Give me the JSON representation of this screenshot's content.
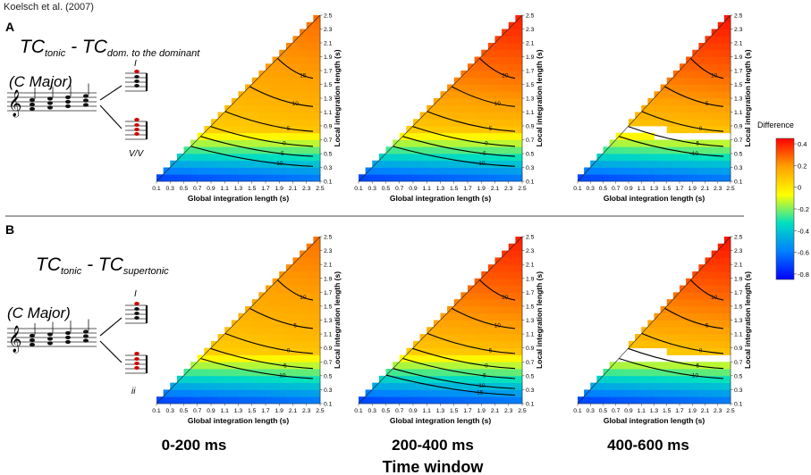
{
  "citation": "Koelsch et al. (2007)",
  "colorbar": {
    "label": "Difference",
    "ticks": [
      "0.4",
      "0.2",
      "0",
      "-0.2",
      "-0.4",
      "-0.6",
      "-0.8"
    ],
    "tick_values": [
      0.4,
      0.2,
      0,
      -0.2,
      -0.4,
      -0.6,
      -0.8
    ],
    "range": [
      -0.85,
      0.45
    ],
    "colors": [
      "#0000ff",
      "#0080ff",
      "#00e0c0",
      "#ffff00",
      "#ffa000",
      "#ff0000"
    ]
  },
  "panels": [
    {
      "letter": "A",
      "title_main_1": "TC",
      "title_sub_1": "tonic",
      "title_dash": " - ",
      "title_main_2": "TC",
      "title_sub_2": "dom. to the dominant",
      "key_label": "(C Major)",
      "chord_label_upper": "I",
      "chord_label_lower": "V/V"
    },
    {
      "letter": "B",
      "title_main_1": "TC",
      "title_sub_1": "tonic",
      "title_dash": " - ",
      "title_main_2": "TC",
      "title_sub_2": "supertonic",
      "key_label": "(C Major)",
      "chord_label_upper": "I",
      "chord_label_lower": "ii"
    }
  ],
  "time_windows": [
    "0-200 ms",
    "200-400 ms",
    "400-600 ms"
  ],
  "time_axis_label": "Time window",
  "chart_data": [
    {
      "type": "heatmap",
      "panel": "A",
      "time_window": "0-200 ms",
      "xlabel": "Global integration length (s)",
      "ylabel": "Local integration length (s)",
      "x_ticks": [
        "0.1",
        "0.3",
        "0.5",
        "0.7",
        "0.9",
        "1.1",
        "1.3",
        "1.5",
        "1.7",
        "1.9",
        "2.1",
        "2.3",
        "2.5"
      ],
      "y_ticks": [
        "0.1",
        "0.3",
        "0.5",
        "0.7",
        "0.9",
        "1.1",
        "1.3",
        "1.5",
        "1.7",
        "1.9",
        "2.1",
        "2.3",
        "2.5"
      ],
      "xlim": [
        0.1,
        2.5
      ],
      "ylim": [
        0.1,
        2.5
      ],
      "domain": "local <= global",
      "value_model": {
        "top": 0.25,
        "bottom": -0.45,
        "min": -0.7,
        "null_band": [
          -0.02,
          0.04
        ]
      },
      "contour_labels": [
        "15",
        "10",
        "5",
        "0",
        "-5",
        "-10"
      ]
    },
    {
      "type": "heatmap",
      "panel": "A",
      "time_window": "200-400 ms",
      "xlabel": "Global integration length (s)",
      "ylabel": "Local integration length (s)",
      "x_ticks": [
        "0.1",
        "0.3",
        "0.5",
        "0.7",
        "0.9",
        "1.1",
        "1.3",
        "1.5",
        "1.7",
        "1.9",
        "2.1",
        "2.3",
        "2.5"
      ],
      "y_ticks": [
        "0.1",
        "0.3",
        "0.5",
        "0.7",
        "0.9",
        "1.1",
        "1.3",
        "1.5",
        "1.7",
        "1.9",
        "2.1",
        "2.3",
        "2.5"
      ],
      "xlim": [
        0.1,
        2.5
      ],
      "ylim": [
        0.1,
        2.5
      ],
      "domain": "local <= global",
      "value_model": {
        "top": 0.38,
        "bottom": -0.45,
        "min": -0.7,
        "null_band": [
          -0.03,
          0.06
        ]
      },
      "contour_labels": [
        "20",
        "10",
        "5",
        "0",
        "-5",
        "-10"
      ]
    },
    {
      "type": "heatmap",
      "panel": "A",
      "time_window": "400-600 ms",
      "xlabel": "Global integration length (s)",
      "ylabel": "Local integration length (s)",
      "x_ticks": [
        "0.1",
        "0.3",
        "0.5",
        "0.7",
        "0.9",
        "1.1",
        "1.3",
        "1.5",
        "1.7",
        "1.9",
        "2.1",
        "2.3",
        "2.5"
      ],
      "y_ticks": [
        "0.1",
        "0.3",
        "0.5",
        "0.7",
        "0.9",
        "1.1",
        "1.3",
        "1.5",
        "1.7",
        "1.9",
        "2.1",
        "2.3",
        "2.5"
      ],
      "xlim": [
        0.1,
        2.5
      ],
      "ylim": [
        0.1,
        2.5
      ],
      "domain": "local <= global",
      "value_model": {
        "top": 0.4,
        "bottom": -0.45,
        "min": -0.7,
        "null_band": [
          -0.05,
          0.08
        ]
      },
      "contour_labels": [
        "10",
        "5",
        "0",
        "-5",
        "-10"
      ]
    },
    {
      "type": "heatmap",
      "panel": "B",
      "time_window": "0-200 ms",
      "xlabel": "Global integration length (s)",
      "ylabel": "Local integration length (s)",
      "x_ticks": [
        "0.1",
        "0.3",
        "0.5",
        "0.7",
        "0.9",
        "1.1",
        "1.3",
        "1.5",
        "1.7",
        "1.9",
        "2.1",
        "2.3",
        "2.5"
      ],
      "y_ticks": [
        "0.1",
        "0.3",
        "0.5",
        "0.7",
        "0.9",
        "1.1",
        "1.3",
        "1.5",
        "1.7",
        "1.9",
        "2.1",
        "2.3",
        "2.5"
      ],
      "xlim": [
        0.1,
        2.5
      ],
      "ylim": [
        0.1,
        2.5
      ],
      "domain": "local <= global",
      "value_model": {
        "top": 0.24,
        "bottom": -0.45,
        "min": -0.7,
        "null_band": [
          -0.02,
          0.04
        ]
      },
      "contour_labels": [
        "10",
        "5",
        "0",
        "-5",
        "-10"
      ]
    },
    {
      "type": "heatmap",
      "panel": "B",
      "time_window": "200-400 ms",
      "xlabel": "Global integration length (s)",
      "ylabel": "Local integration length (s)",
      "x_ticks": [
        "0.1",
        "0.3",
        "0.5",
        "0.7",
        "0.9",
        "1.1",
        "1.3",
        "1.5",
        "1.7",
        "1.9",
        "2.1",
        "2.3",
        "2.5"
      ],
      "y_ticks": [
        "0.1",
        "0.3",
        "0.5",
        "0.7",
        "0.9",
        "1.1",
        "1.3",
        "1.5",
        "1.7",
        "1.9",
        "2.1",
        "2.3",
        "2.5"
      ],
      "xlim": [
        0.1,
        2.5
      ],
      "ylim": [
        0.1,
        2.5
      ],
      "domain": "local <= global",
      "value_model": {
        "top": 0.38,
        "bottom": -0.45,
        "min": -0.7,
        "null_band": [
          -0.04,
          0.06
        ]
      },
      "contour_labels": [
        "20",
        "10",
        "5",
        "0",
        "-5",
        "-10",
        "-15"
      ]
    },
    {
      "type": "heatmap",
      "panel": "B",
      "time_window": "400-600 ms",
      "xlabel": "Global integration length (s)",
      "ylabel": "Local integration length (s)",
      "x_ticks": [
        "0.1",
        "0.3",
        "0.5",
        "0.7",
        "0.9",
        "1.1",
        "1.3",
        "1.5",
        "1.7",
        "1.9",
        "2.1",
        "2.3",
        "2.5"
      ],
      "y_ticks": [
        "0.1",
        "0.3",
        "0.5",
        "0.7",
        "0.9",
        "1.1",
        "1.3",
        "1.5",
        "1.7",
        "1.9",
        "2.1",
        "2.3",
        "2.5"
      ],
      "xlim": [
        0.1,
        2.5
      ],
      "ylim": [
        0.1,
        2.5
      ],
      "domain": "local <= global",
      "value_model": {
        "top": 0.4,
        "bottom": -0.45,
        "min": -0.7,
        "null_band": [
          -0.06,
          0.08
        ]
      },
      "contour_labels": [
        "10",
        "5",
        "0",
        "-5",
        "-10"
      ]
    }
  ]
}
